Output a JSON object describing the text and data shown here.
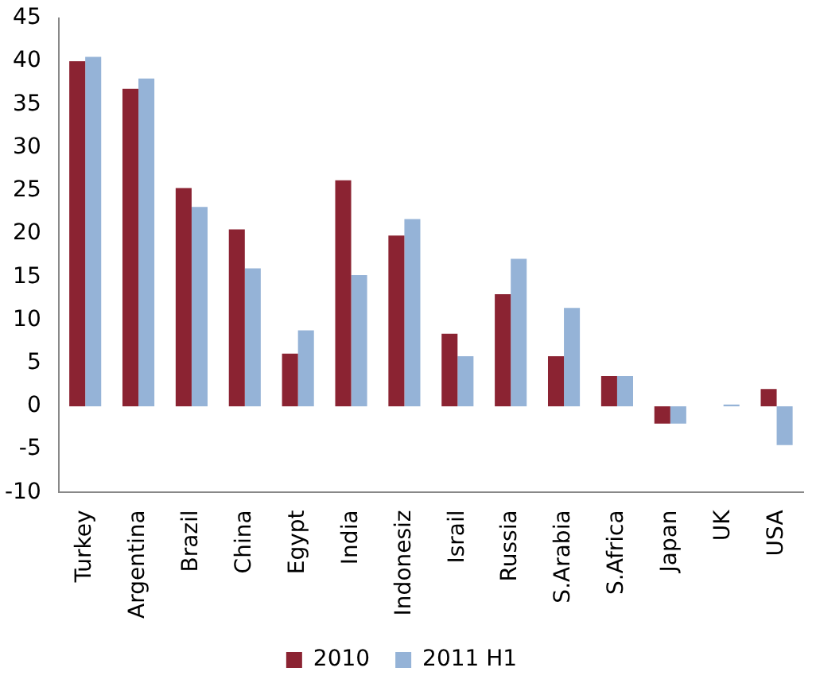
{
  "chart_data": {
    "type": "bar",
    "categories": [
      "Turkey",
      "Argentina",
      "Brazil",
      "China",
      "Egypt",
      "India",
      "Indonesiz",
      "Israil",
      "Russia",
      "S.Arabia",
      "S.Africa",
      "Japan",
      "UK",
      "USA"
    ],
    "series": [
      {
        "name": "2010",
        "color": "#8b2332",
        "values": [
          40,
          36.8,
          25.3,
          20.5,
          6.1,
          26.2,
          19.8,
          8.4,
          13,
          5.8,
          3.5,
          -2,
          0,
          2
        ]
      },
      {
        "name": "2011 H1",
        "color": "#95b3d7",
        "values": [
          40.5,
          38,
          23.1,
          16,
          8.8,
          15.2,
          21.7,
          5.8,
          17.1,
          11.4,
          3.5,
          -2,
          0.2,
          -4.5
        ]
      }
    ],
    "ylim": [
      -10,
      45
    ],
    "yticks": [
      -10,
      -5,
      0,
      5,
      10,
      15,
      20,
      25,
      30,
      35,
      40,
      45
    ],
    "grid": false,
    "legend": "bottom"
  }
}
